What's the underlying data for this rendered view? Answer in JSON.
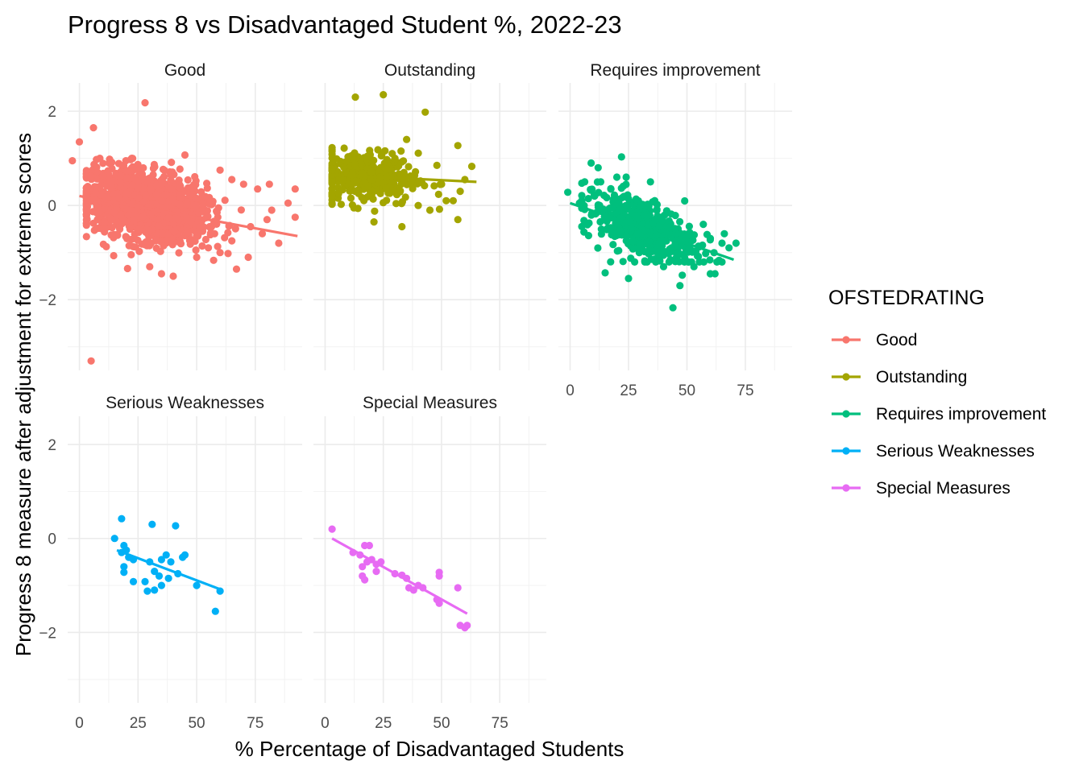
{
  "chart_data": {
    "type": "scatter",
    "title": "Progress 8 vs Disadvantaged Student %, 2022-23",
    "xlabel": "% Percentage of Disadvantaged Students",
    "ylabel": "Progress 8 measure after adjustment for extreme scores",
    "xlim": [
      -5,
      95
    ],
    "ylim": [
      -3.5,
      2.6
    ],
    "x_ticks": [
      0,
      25,
      50,
      75
    ],
    "y_ticks": [
      2,
      0,
      -2
    ],
    "grid": true,
    "facet_by": "OFSTEDRATING",
    "legend": {
      "title": "OFSTEDRATING",
      "position": "right",
      "entries": [
        "Good",
        "Outstanding",
        "Requires improvement",
        "Serious Weaknesses",
        "Special Measures"
      ]
    },
    "series": [
      {
        "name": "Good",
        "color": "#F8766D",
        "trend_line": {
          "x": [
            0,
            93
          ],
          "y": [
            0.2,
            -0.65
          ]
        },
        "cloud": {
          "n": 1500,
          "x_range": [
            3,
            75
          ],
          "x_mean": 28,
          "x_sd": 13,
          "y_mean": 0.0,
          "y_sd": 0.35,
          "y_clip": [
            -1.5,
            1.0
          ]
        },
        "points": [
          [
            28,
            2.18
          ],
          [
            6,
            1.65
          ],
          [
            0,
            1.35
          ],
          [
            45,
            1.07
          ],
          [
            -3,
            0.95
          ],
          [
            60,
            0.75
          ],
          [
            65,
            0.55
          ],
          [
            70,
            0.45
          ],
          [
            81,
            0.45
          ],
          [
            92,
            0.35
          ],
          [
            89,
            0.05
          ],
          [
            92,
            -0.25
          ],
          [
            80,
            -0.3
          ],
          [
            76,
            0.35
          ],
          [
            73,
            -0.45
          ],
          [
            82,
            -0.1
          ],
          [
            65,
            -0.75
          ],
          [
            72,
            -1.1
          ],
          [
            67,
            -1.35
          ],
          [
            40,
            -1.5
          ],
          [
            35,
            -1.45
          ],
          [
            30,
            -1.3
          ],
          [
            5,
            -3.3
          ],
          [
            55,
            -0.9
          ],
          [
            60,
            -1.0
          ],
          [
            50,
            -1.1
          ],
          [
            85,
            -0.8
          ],
          [
            78,
            -0.6
          ]
        ]
      },
      {
        "name": "Outstanding",
        "color": "#A3A500",
        "trend_line": {
          "x": [
            3,
            65
          ],
          "y": [
            0.65,
            0.5
          ]
        },
        "cloud": {
          "n": 350,
          "x_range": [
            3,
            55
          ],
          "x_mean": 18,
          "x_sd": 11,
          "y_mean": 0.6,
          "y_sd": 0.28,
          "y_clip": [
            -0.3,
            1.4
          ]
        },
        "points": [
          [
            13,
            2.3
          ],
          [
            25,
            2.35
          ],
          [
            43,
            1.98
          ],
          [
            57,
            1.27
          ],
          [
            63,
            0.83
          ],
          [
            58,
            0.3
          ],
          [
            57,
            -0.3
          ],
          [
            60,
            0.55
          ],
          [
            50,
            0.45
          ],
          [
            55,
            0.1
          ],
          [
            48,
            0.85
          ],
          [
            52,
            0.1
          ],
          [
            35,
            1.4
          ],
          [
            30,
            1.0
          ],
          [
            21,
            -0.35
          ],
          [
            33,
            -0.45
          ],
          [
            45,
            -0.1
          ],
          [
            40,
            0.0
          ]
        ]
      },
      {
        "name": "Requires improvement",
        "color": "#00BF7D",
        "trend_line": {
          "x": [
            0,
            70
          ],
          "y": [
            0.05,
            -1.15
          ]
        },
        "cloud": {
          "n": 450,
          "x_range": [
            5,
            65
          ],
          "x_mean": 30,
          "x_sd": 12,
          "y_mean": -0.45,
          "y_sd": 0.32,
          "y_clip": [
            -1.2,
            0.5
          ]
        },
        "points": [
          [
            -1,
            0.28
          ],
          [
            9,
            0.9
          ],
          [
            12,
            0.8
          ],
          [
            22,
            1.03
          ],
          [
            20,
            0.6
          ],
          [
            24,
            0.6
          ],
          [
            4,
            0.05
          ],
          [
            15,
            -1.43
          ],
          [
            25,
            -1.55
          ],
          [
            40,
            -1.3
          ],
          [
            44,
            -2.17
          ],
          [
            48,
            -1.48
          ],
          [
            47,
            -1.7
          ],
          [
            52,
            -1.2
          ],
          [
            58,
            -1.02
          ],
          [
            65,
            -0.8
          ],
          [
            71,
            -0.8
          ],
          [
            60,
            -1.45
          ],
          [
            62,
            -1.45
          ],
          [
            53,
            -1.3
          ],
          [
            68,
            -0.9
          ],
          [
            66,
            -0.6
          ],
          [
            60,
            -0.7
          ],
          [
            57,
            -0.4
          ]
        ]
      },
      {
        "name": "Serious Weaknesses",
        "color": "#00B0F6",
        "trend_line": {
          "x": [
            16,
            61
          ],
          "y": [
            -0.25,
            -1.1
          ]
        },
        "points": [
          [
            18,
            0.42
          ],
          [
            31,
            0.3
          ],
          [
            41,
            0.27
          ],
          [
            15,
            0.0
          ],
          [
            19,
            -0.15
          ],
          [
            20,
            -0.25
          ],
          [
            18,
            -0.3
          ],
          [
            21,
            -0.4
          ],
          [
            23,
            -0.45
          ],
          [
            30,
            -0.5
          ],
          [
            35,
            -0.45
          ],
          [
            37,
            -0.35
          ],
          [
            39,
            -0.5
          ],
          [
            44,
            -0.4
          ],
          [
            45,
            -0.35
          ],
          [
            19,
            -0.6
          ],
          [
            19,
            -0.72
          ],
          [
            23,
            -0.92
          ],
          [
            28,
            -0.92
          ],
          [
            32,
            -0.7
          ],
          [
            34,
            -0.8
          ],
          [
            38,
            -0.85
          ],
          [
            42,
            -0.75
          ],
          [
            29,
            -1.12
          ],
          [
            32,
            -1.1
          ],
          [
            35,
            -1.0
          ],
          [
            50,
            -1.0
          ],
          [
            60,
            -1.12
          ],
          [
            58,
            -1.55
          ]
        ]
      },
      {
        "name": "Special Measures",
        "color": "#E76BF3",
        "trend_line": {
          "x": [
            3,
            61
          ],
          "y": [
            0.0,
            -1.6
          ]
        },
        "points": [
          [
            3,
            0.2
          ],
          [
            12,
            -0.3
          ],
          [
            15,
            -0.35
          ],
          [
            17,
            -0.15
          ],
          [
            19,
            -0.15
          ],
          [
            20,
            -0.45
          ],
          [
            18,
            -0.5
          ],
          [
            22,
            -0.55
          ],
          [
            16,
            -0.6
          ],
          [
            22,
            -0.7
          ],
          [
            16,
            -0.8
          ],
          [
            17,
            -0.88
          ],
          [
            24,
            -0.5
          ],
          [
            30,
            -0.75
          ],
          [
            33,
            -0.78
          ],
          [
            35,
            -0.85
          ],
          [
            36,
            -1.05
          ],
          [
            40,
            -1.0
          ],
          [
            42,
            -1.05
          ],
          [
            38,
            -1.1
          ],
          [
            49,
            -0.72
          ],
          [
            49,
            -0.8
          ],
          [
            48,
            -1.3
          ],
          [
            49,
            -1.38
          ],
          [
            57,
            -1.05
          ],
          [
            58,
            -1.85
          ],
          [
            60,
            -1.9
          ],
          [
            61,
            -1.85
          ]
        ]
      }
    ]
  }
}
